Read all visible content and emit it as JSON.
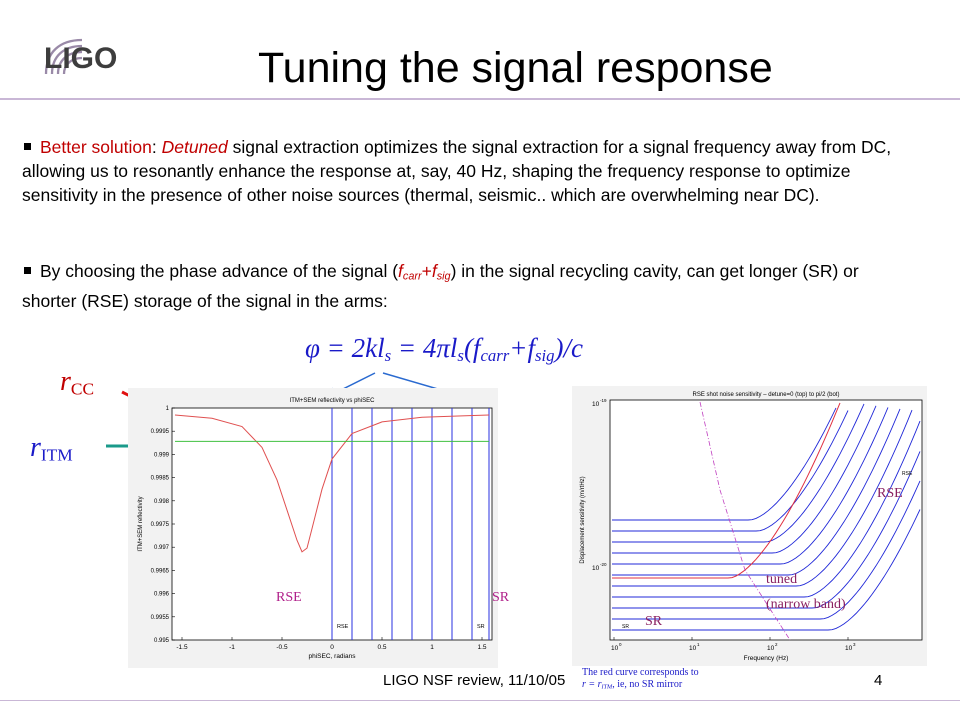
{
  "logo": {
    "text": "LIGO"
  },
  "slide": {
    "title": "Tuning the signal response"
  },
  "bullets": {
    "b1": {
      "lead": "Better solution",
      "colon": ": ",
      "emph": "Detuned",
      "rest": " signal extraction optimizes the signal extraction for a signal frequency away from DC, allowing us to resonantly enhance the response at, say, 40 Hz, shaping the frequency response to optimize sensitivity in the presence of other noise sources (thermal, seismic.. which are overwhelming near DC)."
    },
    "b2": {
      "pre": "By choosing the phase advance of the signal (",
      "f_carr_f": "f",
      "f_carr_sub": "carr",
      "plus": "+",
      "f_sig_f": "f",
      "f_sig_sub": "sig",
      "post": ") in the signal recycling cavity, can get longer (SR) or shorter (RSE) storage of the signal in the arms:"
    }
  },
  "equation": {
    "p1": "φ = 2kl",
    "s1": "s",
    "p2": " = 4πl",
    "s2": "s",
    "p3": "(f",
    "s3": "carr",
    "p4": "+f",
    "s4": "sig",
    "p5": ")/c"
  },
  "labels": {
    "rcc": "r",
    "rcc_sub": "CC",
    "ritm": "r",
    "ritm_sub": "ITM"
  },
  "left_plot": {
    "title": "ITM+SEM reflectivity vs phiSEC",
    "xlabel": "phiSEC, radians",
    "ylabel": "ITM+SEM reflectivity",
    "x_ticks": [
      "-1.5",
      "-1",
      "-0.5",
      "0",
      "0.5",
      "1",
      "1.5"
    ],
    "y_ticks": [
      "1",
      "0.9995",
      "0.999",
      "0.9985",
      "0.998",
      "0.9975",
      "0.997",
      "0.9965",
      "0.996",
      "0.9955",
      "0.995"
    ],
    "rse_small": "RSE",
    "sr_small": "SR",
    "rse_label": "RSE",
    "sr_label": "SR"
  },
  "right_plot": {
    "title": "RSE shot noise sensitivity – detune=0 (top) to pi/2 (bot)",
    "xlabel": "Frequency (Hz)",
    "ylabel": "Displacement sensitivity (m/rtHz)",
    "x_ticks": [
      "10",
      "10",
      "10",
      "10"
    ],
    "x_exps": [
      "0",
      "1",
      "2",
      "3"
    ],
    "y_top": "10",
    "y_top_exp": "-19",
    "y_mid": "10",
    "y_mid_exp": "-20",
    "rse_small": "RSE",
    "sr_small": "SR",
    "rse_label": "RSE",
    "tuned_label": "tuned",
    "narrow_label": "(narrow band)",
    "sr_label": "SR"
  },
  "note": {
    "line1": "The red curve corresponds to",
    "line2a": "r = r",
    "line2sub": "ITM",
    "line2b": ",  ie, no SR mirror"
  },
  "footer": {
    "text": "LIGO NSF review, 11/10/05",
    "page": "4"
  },
  "chart_data": [
    {
      "type": "line",
      "title": "ITM+SEM reflectivity vs phiSEC",
      "xlabel": "phiSEC, radians",
      "ylabel": "ITM+SEM reflectivity",
      "xlim": [
        -1.6,
        1.6
      ],
      "ylim": [
        0.995,
        1.0
      ],
      "series": [
        {
          "color": "#e05050",
          "x": [
            -1.57,
            -1.2,
            -0.9,
            -0.7,
            -0.55,
            -0.45,
            -0.35,
            -0.3,
            -0.25,
            -0.2,
            -0.1,
            0.0,
            0.2,
            0.5,
            0.9,
            1.3,
            1.57
          ],
          "y": [
            0.99985,
            0.99978,
            0.9996,
            0.99915,
            0.99845,
            0.9978,
            0.99715,
            0.9969,
            0.99698,
            0.9974,
            0.99825,
            0.9989,
            0.99945,
            0.9997,
            0.9998,
            0.99983,
            0.99985
          ]
        },
        {
          "color": "#40c040",
          "x": [
            -1.57,
            1.57
          ],
          "y": [
            0.99928,
            0.99928
          ]
        }
      ],
      "vlines": [
        0,
        0.2,
        0.4,
        0.6,
        0.8,
        1.0,
        1.2,
        1.4,
        1.57
      ]
    },
    {
      "type": "line",
      "title": "RSE shot noise sensitivity – detune=0 (top) to pi/2 (bot)",
      "xlabel": "Frequency (Hz)",
      "ylabel": "Displacement sensitivity (m/rtHz)",
      "log_x": true,
      "log_y": true,
      "xlim": [
        1,
        10000
      ],
      "series_count": 11
    }
  ]
}
